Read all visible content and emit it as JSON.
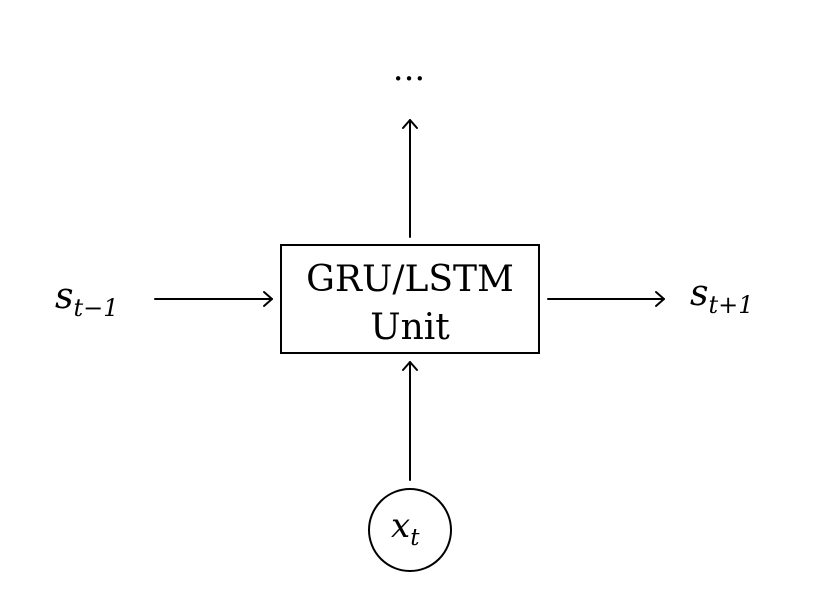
{
  "diagram": {
    "unit": {
      "line1": "GRU/LSTM",
      "line2": "Unit"
    },
    "prev_state": {
      "main": "s",
      "sub": "t−1"
    },
    "next_state": {
      "main": "s",
      "sub": "t+1"
    },
    "input": {
      "main": "x",
      "sub": "t"
    },
    "output": {
      "text": "..."
    }
  }
}
